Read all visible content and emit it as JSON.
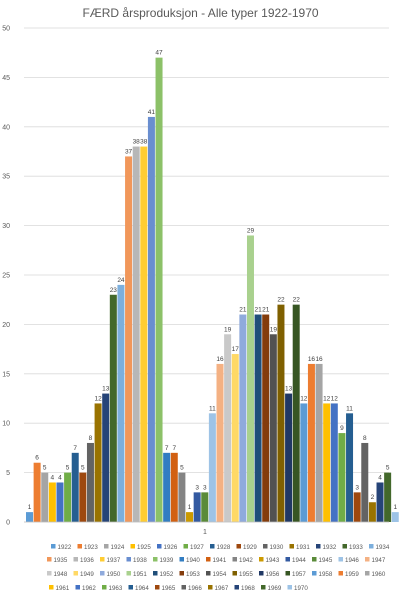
{
  "chart_data": {
    "type": "bar",
    "title": "FÆRD årsproduksjon - Alle typer 1922-1970",
    "xlabel": "",
    "ylabel": "",
    "ylim": [
      0,
      50
    ],
    "y_ticks": [
      0,
      5,
      10,
      15,
      20,
      25,
      30,
      35,
      40,
      45,
      50
    ],
    "categories": [
      "1"
    ],
    "grid": true,
    "legend_position": "bottom",
    "series": [
      {
        "name": "1922",
        "value": 1,
        "color": "#5b9bd5"
      },
      {
        "name": "1923",
        "value": 6,
        "color": "#ed7d31"
      },
      {
        "name": "1924",
        "value": 5,
        "color": "#a5a5a5"
      },
      {
        "name": "1925",
        "value": 4,
        "color": "#ffc000"
      },
      {
        "name": "1926",
        "value": 4,
        "color": "#4472c4"
      },
      {
        "name": "1927",
        "value": 5,
        "color": "#70ad47"
      },
      {
        "name": "1928",
        "value": 7,
        "color": "#255e91"
      },
      {
        "name": "1929",
        "value": 5,
        "color": "#9e480e"
      },
      {
        "name": "1930",
        "value": 8,
        "color": "#636363"
      },
      {
        "name": "1931",
        "value": 12,
        "color": "#997300"
      },
      {
        "name": "1932",
        "value": 13,
        "color": "#264478"
      },
      {
        "name": "1933",
        "value": 23,
        "color": "#43682b"
      },
      {
        "name": "1934",
        "value": 24,
        "color": "#7cafdd"
      },
      {
        "name": "1935",
        "value": 37,
        "color": "#f1975a"
      },
      {
        "name": "1936",
        "value": 38,
        "color": "#b7b7b7"
      },
      {
        "name": "1937",
        "value": 38,
        "color": "#ffcd33"
      },
      {
        "name": "1938",
        "value": 41,
        "color": "#698ed0"
      },
      {
        "name": "1939",
        "value": 47,
        "color": "#8cc168"
      },
      {
        "name": "1940",
        "value": 7,
        "color": "#327dc2"
      },
      {
        "name": "1941",
        "value": 7,
        "color": "#d26012"
      },
      {
        "name": "1942",
        "value": 5,
        "color": "#848484"
      },
      {
        "name": "1943",
        "value": 1,
        "color": "#cc9a00"
      },
      {
        "name": "1944",
        "value": 3,
        "color": "#335aa1"
      },
      {
        "name": "1945",
        "value": 3,
        "color": "#5a8b39"
      },
      {
        "name": "1946",
        "value": 11,
        "color": "#9dc3e6"
      },
      {
        "name": "1947",
        "value": 16,
        "color": "#f4b183"
      },
      {
        "name": "1948",
        "value": 19,
        "color": "#c9c9c9"
      },
      {
        "name": "1949",
        "value": 17,
        "color": "#ffd966"
      },
      {
        "name": "1950",
        "value": 21,
        "color": "#8faadc"
      },
      {
        "name": "1951",
        "value": 29,
        "color": "#a9d18e"
      },
      {
        "name": "1952",
        "value": 21,
        "color": "#1f4e79"
      },
      {
        "name": "1953",
        "value": 21,
        "color": "#843c0c"
      },
      {
        "name": "1954",
        "value": 19,
        "color": "#525252"
      },
      {
        "name": "1955",
        "value": 22,
        "color": "#7f6000"
      },
      {
        "name": "1956",
        "value": 13,
        "color": "#203864"
      },
      {
        "name": "1957",
        "value": 22,
        "color": "#375623"
      },
      {
        "name": "1958",
        "value": 12,
        "color": "#5b9bd5"
      },
      {
        "name": "1959",
        "value": 16,
        "color": "#ed7d31"
      },
      {
        "name": "1960",
        "value": 16,
        "color": "#a5a5a5"
      },
      {
        "name": "1961",
        "value": 12,
        "color": "#ffc000"
      },
      {
        "name": "1962",
        "value": 12,
        "color": "#4472c4"
      },
      {
        "name": "1963",
        "value": 9,
        "color": "#70ad47"
      },
      {
        "name": "1964",
        "value": 11,
        "color": "#255e91"
      },
      {
        "name": "1965",
        "value": 3,
        "color": "#9e480e"
      },
      {
        "name": "1966",
        "value": 8,
        "color": "#636363"
      },
      {
        "name": "1967",
        "value": 2,
        "color": "#997300"
      },
      {
        "name": "1968",
        "value": 4,
        "color": "#264478"
      },
      {
        "name": "1969",
        "value": 5,
        "color": "#43682b"
      },
      {
        "name": "1970",
        "value": 1,
        "color": "#9dc3e6"
      }
    ]
  }
}
